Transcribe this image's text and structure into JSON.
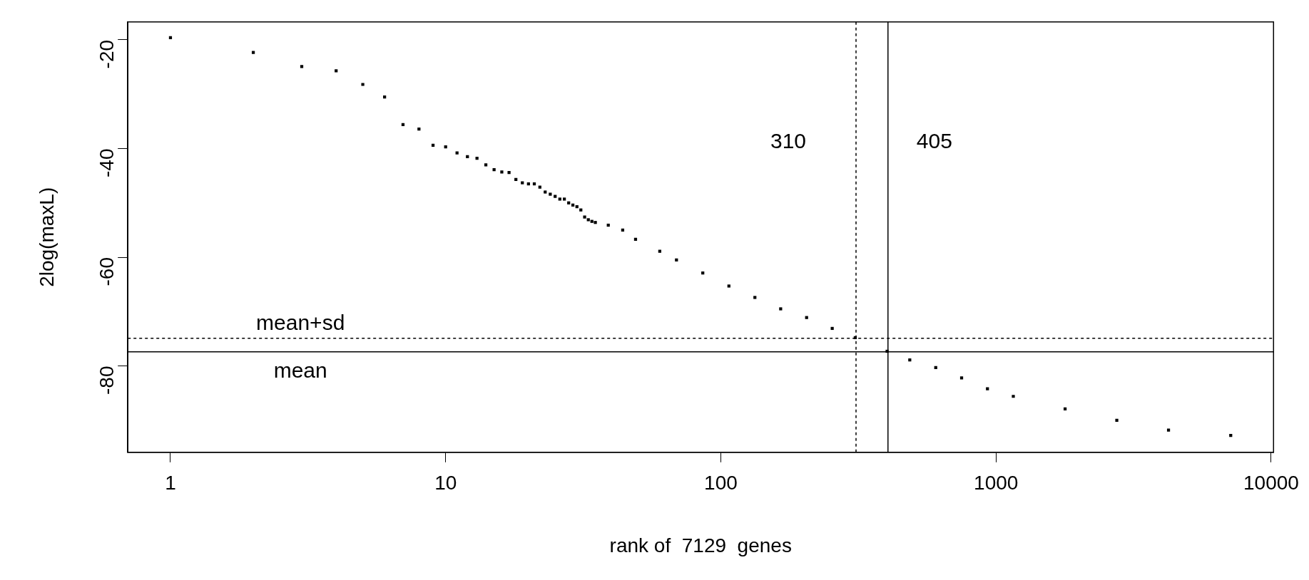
{
  "chart_data": {
    "type": "scatter",
    "xlabel": "rank of  7129  genes",
    "ylabel": "2log(maxL)",
    "log": "x",
    "grid": false,
    "legend": false,
    "marker": "square",
    "xlim": [
      0.7,
      10200
    ],
    "ylim": [
      -95.9,
      -16.7
    ],
    "xticks": [
      1,
      10,
      100,
      1000,
      10000
    ],
    "yticks": [
      -20,
      -40,
      -60,
      -80
    ],
    "series": [
      {
        "color": "#000000",
        "x": [
          1,
          2,
          3,
          4,
          5,
          6,
          7,
          8,
          9,
          10,
          11,
          12,
          13,
          14,
          15,
          16,
          17,
          18,
          19,
          20,
          21,
          22,
          23,
          24,
          25,
          26,
          27,
          28,
          29,
          30,
          31,
          32,
          33,
          34,
          35,
          39,
          44,
          49,
          60,
          69,
          86,
          107,
          133,
          165,
          205,
          254,
          308,
          402,
          486,
          604,
          750,
          931,
          1156,
          1783,
          2748,
          4236,
          7129
        ],
        "values": [
          -19.6,
          -22.3,
          -24.9,
          -25.7,
          -28.2,
          -30.5,
          -35.6,
          -36.4,
          -39.4,
          -39.7,
          -40.8,
          -41.5,
          -41.8,
          -43.0,
          -43.9,
          -44.3,
          -44.4,
          -45.7,
          -46.3,
          -46.5,
          -46.5,
          -47.1,
          -48.0,
          -48.4,
          -48.8,
          -49.3,
          -49.3,
          -50.0,
          -50.4,
          -50.7,
          -51.3,
          -52.6,
          -53.1,
          -53.4,
          -53.6,
          -54.1,
          -55.0,
          -56.7,
          -58.9,
          -60.5,
          -62.9,
          -65.3,
          -67.4,
          -69.5,
          -71.1,
          -73.1,
          -74.8,
          -77.3,
          -78.9,
          -80.3,
          -82.2,
          -84.2,
          -85.6,
          -87.9,
          -90.0,
          -91.8,
          -92.8
        ]
      }
    ],
    "ref_lines": [
      {
        "axis": "y",
        "value": -74.9,
        "line_style": "dashed",
        "label": "mean+sd"
      },
      {
        "axis": "y",
        "value": -77.4,
        "line_style": "solid",
        "label": "mean"
      },
      {
        "axis": "x",
        "value": 310,
        "line_style": "dashed",
        "label": "310"
      },
      {
        "axis": "x",
        "value": 405,
        "line_style": "solid",
        "label": "405"
      }
    ]
  }
}
